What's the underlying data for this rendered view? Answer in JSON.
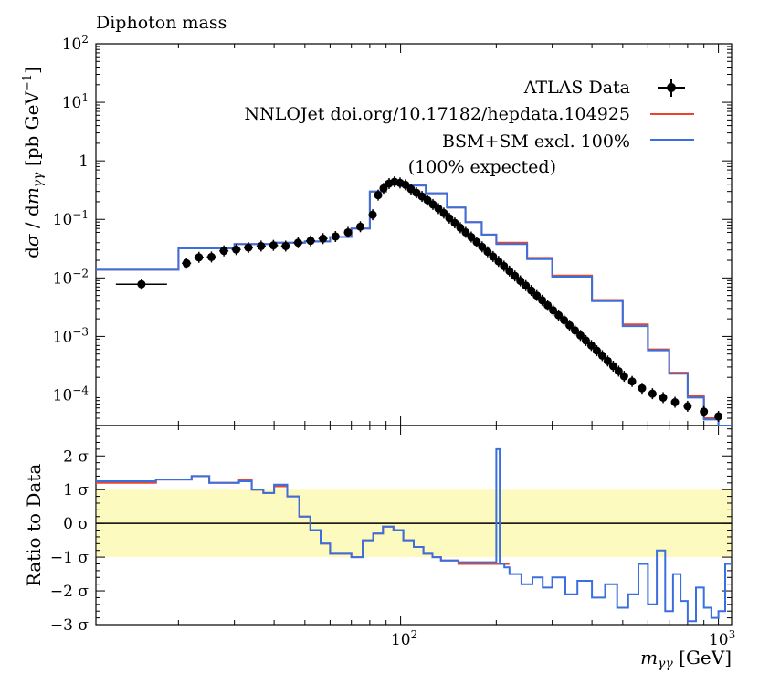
{
  "chart_data": {
    "type": "line",
    "title": "Diphoton mass",
    "xlabel": "m_γγ [GeV]",
    "ylabel": "dσ / dm_γγ [pb GeV^−1]",
    "ratio_ylabel": "Ratio to Data",
    "xscale": "log",
    "yscale": "log",
    "xlim": [
      11,
      1100
    ],
    "ylim": [
      3e-05,
      100
    ],
    "ratio_ylim": [
      -3,
      2.9
    ],
    "x_tick_labels": [
      "10^2",
      "10^3"
    ],
    "y_tick_labels": [
      "10^-4",
      "10^-3",
      "10^-2",
      "10^-1",
      "1",
      "10^1",
      "10^2"
    ],
    "ratio_tick_labels": [
      "−3 σ",
      "−2 σ",
      "−1 σ",
      "0 σ",
      "1 σ",
      "2 σ"
    ],
    "legend": {
      "placement": "top-right",
      "entries": [
        {
          "label": "ATLAS Data",
          "marker": "point",
          "color": "#000000"
        },
        {
          "label": "NNLOJet doi.org/10.17182/hepdata.104925",
          "marker": "line",
          "color": "#e8452b"
        },
        {
          "label": "BSM+SM excl. 100%",
          "marker": "line",
          "color": "#3a6fe0"
        }
      ],
      "note": "(100% expected)"
    },
    "data_points": [
      {
        "x": 15.3,
        "y": 0.0078
      },
      {
        "x": 21.2,
        "y": 0.0178
      },
      {
        "x": 23.2,
        "y": 0.0225
      },
      {
        "x": 25.4,
        "y": 0.0228
      },
      {
        "x": 27.8,
        "y": 0.029
      },
      {
        "x": 30.4,
        "y": 0.0305
      },
      {
        "x": 33.2,
        "y": 0.033
      },
      {
        "x": 36.4,
        "y": 0.035
      },
      {
        "x": 39.8,
        "y": 0.036
      },
      {
        "x": 43.5,
        "y": 0.035
      },
      {
        "x": 47.6,
        "y": 0.04
      },
      {
        "x": 52.1,
        "y": 0.043
      },
      {
        "x": 57.0,
        "y": 0.047
      },
      {
        "x": 62.4,
        "y": 0.051
      },
      {
        "x": 68.3,
        "y": 0.06
      },
      {
        "x": 74.7,
        "y": 0.075
      },
      {
        "x": 81.7,
        "y": 0.12
      },
      {
        "x": 85.0,
        "y": 0.26
      },
      {
        "x": 88.4,
        "y": 0.34
      },
      {
        "x": 92.0,
        "y": 0.41
      },
      {
        "x": 95.7,
        "y": 0.44
      },
      {
        "x": 99.6,
        "y": 0.42
      },
      {
        "x": 103.6,
        "y": 0.39
      },
      {
        "x": 107.8,
        "y": 0.33
      },
      {
        "x": 112.2,
        "y": 0.285
      },
      {
        "x": 116.8,
        "y": 0.247
      },
      {
        "x": 121.5,
        "y": 0.213
      },
      {
        "x": 126.4,
        "y": 0.18
      },
      {
        "x": 131.5,
        "y": 0.153
      },
      {
        "x": 136.8,
        "y": 0.128
      },
      {
        "x": 142.3,
        "y": 0.105
      },
      {
        "x": 148.1,
        "y": 0.087
      },
      {
        "x": 154.1,
        "y": 0.072
      },
      {
        "x": 160.3,
        "y": 0.06
      },
      {
        "x": 166.8,
        "y": 0.05
      },
      {
        "x": 173.5,
        "y": 0.041
      },
      {
        "x": 180.5,
        "y": 0.034
      },
      {
        "x": 187.8,
        "y": 0.028
      },
      {
        "x": 195.4,
        "y": 0.0232
      },
      {
        "x": 203.3,
        "y": 0.0192
      },
      {
        "x": 211.5,
        "y": 0.0159
      },
      {
        "x": 220.0,
        "y": 0.0131
      },
      {
        "x": 228.9,
        "y": 0.0108
      },
      {
        "x": 238.1,
        "y": 0.0089
      },
      {
        "x": 247.7,
        "y": 0.0074
      },
      {
        "x": 257.7,
        "y": 0.0061
      },
      {
        "x": 268.1,
        "y": 0.005
      },
      {
        "x": 278.9,
        "y": 0.00415
      },
      {
        "x": 290.2,
        "y": 0.0034
      },
      {
        "x": 301.9,
        "y": 0.0028
      },
      {
        "x": 314.1,
        "y": 0.0023
      },
      {
        "x": 326.8,
        "y": 0.0019
      },
      {
        "x": 340.0,
        "y": 0.00155
      },
      {
        "x": 353.7,
        "y": 0.00127
      },
      {
        "x": 368.0,
        "y": 0.00104
      },
      {
        "x": 382.8,
        "y": 0.00085
      },
      {
        "x": 398.3,
        "y": 0.0007
      },
      {
        "x": 414.4,
        "y": 0.00057
      },
      {
        "x": 431.1,
        "y": 0.00047
      },
      {
        "x": 448.5,
        "y": 0.00038
      },
      {
        "x": 466.6,
        "y": 0.00031
      },
      {
        "x": 485.4,
        "y": 0.000255
      },
      {
        "x": 505.0,
        "y": 0.000208
      },
      {
        "x": 535.0,
        "y": 0.00017
      },
      {
        "x": 575.0,
        "y": 0.00013
      },
      {
        "x": 620.0,
        "y": 0.000105
      },
      {
        "x": 670.0,
        "y": 9e-05
      },
      {
        "x": 730.0,
        "y": 7.5e-05
      },
      {
        "x": 800.0,
        "y": 6.4e-05
      },
      {
        "x": 900.0,
        "y": 5.2e-05
      },
      {
        "x": 1000.0,
        "y": 4.3e-05
      }
    ],
    "series": [
      {
        "name": "NNLOJet doi.org/10.17182/hepdata.104925",
        "color": "#e8452b",
        "edges": [
          11,
          20,
          30,
          40,
          50,
          60,
          70,
          80,
          90,
          100,
          120,
          140,
          160,
          180,
          200,
          250,
          300,
          400,
          500,
          600,
          700,
          800,
          900,
          1000,
          1100
        ],
        "values": [
          0.0138,
          0.032,
          0.038,
          0.04,
          0.042,
          0.05,
          0.07,
          0.3,
          0.44,
          0.38,
          0.28,
          0.16,
          0.09,
          0.055,
          0.04,
          0.022,
          0.011,
          0.0042,
          0.0016,
          0.0006,
          0.00024,
          9.5e-05,
          4e-05,
          2.8e-05
        ]
      },
      {
        "name": "BSM+SM excl. 100%",
        "color": "#3a6fe0",
        "edges": [
          11,
          20,
          30,
          40,
          50,
          60,
          70,
          80,
          90,
          100,
          120,
          140,
          160,
          180,
          200,
          250,
          300,
          400,
          500,
          600,
          700,
          800,
          900,
          1000,
          1100
        ],
        "values": [
          0.0138,
          0.032,
          0.038,
          0.04,
          0.042,
          0.05,
          0.07,
          0.3,
          0.44,
          0.38,
          0.28,
          0.16,
          0.09,
          0.055,
          0.038,
          0.021,
          0.0105,
          0.004,
          0.0015,
          0.00058,
          0.00023,
          9e-05,
          3.8e-05,
          2.8e-05
        ]
      }
    ],
    "ratio": {
      "band": [
        -1,
        1
      ],
      "reference": 0,
      "nnlojet": {
        "x": [
          11,
          17,
          19,
          22,
          25,
          28,
          31,
          34,
          37,
          40,
          44,
          48,
          52,
          56,
          60,
          65,
          70,
          76,
          82,
          88,
          95,
          102,
          110,
          118,
          126,
          134,
          142,
          152,
          164,
          176,
          188,
          200,
          212,
          220
        ],
        "y": [
          1.2,
          1.3,
          1.3,
          1.4,
          1.2,
          1.2,
          1.3,
          1.0,
          0.9,
          1.1,
          0.8,
          0.2,
          -0.2,
          -0.6,
          -0.9,
          -0.9,
          -1.0,
          -0.5,
          -0.3,
          -0.1,
          -0.2,
          -0.5,
          -0.7,
          -0.9,
          -1.0,
          -1.1,
          -1.1,
          -1.2,
          -1.2,
          -1.2,
          -1.2,
          -1.2,
          -1.2,
          -1.2
        ]
      },
      "bsm": {
        "x": [
          11,
          17,
          19,
          22,
          25,
          28,
          31,
          34,
          37,
          40,
          44,
          48,
          52,
          56,
          60,
          65,
          70,
          76,
          82,
          88,
          95,
          102,
          110,
          118,
          126,
          134,
          142,
          152,
          164,
          176,
          188,
          200,
          205,
          212,
          220,
          240,
          260,
          280,
          300,
          330,
          360,
          400,
          440,
          480,
          520,
          560,
          600,
          640,
          680,
          720,
          760,
          800,
          850,
          900,
          950,
          1000,
          1050,
          1100
        ],
        "y": [
          1.25,
          1.3,
          1.3,
          1.4,
          1.2,
          1.2,
          1.25,
          1.0,
          0.9,
          1.15,
          0.8,
          0.2,
          -0.2,
          -0.6,
          -0.9,
          -0.9,
          -1.0,
          -0.5,
          -0.3,
          -0.1,
          -0.2,
          -0.5,
          -0.7,
          -0.9,
          -1.0,
          -1.1,
          -1.1,
          -1.15,
          -1.15,
          -1.15,
          -1.15,
          2.2,
          -1.2,
          -1.3,
          -1.5,
          -1.8,
          -1.6,
          -1.9,
          -1.6,
          -2.1,
          -1.7,
          -2.2,
          -1.8,
          -2.5,
          -2.1,
          -1.2,
          -2.4,
          -0.8,
          -2.6,
          -1.5,
          -2.3,
          -2.9,
          -1.9,
          -2.5,
          -2.8,
          -2.6,
          -1.2,
          -1.3
        ]
      }
    }
  }
}
